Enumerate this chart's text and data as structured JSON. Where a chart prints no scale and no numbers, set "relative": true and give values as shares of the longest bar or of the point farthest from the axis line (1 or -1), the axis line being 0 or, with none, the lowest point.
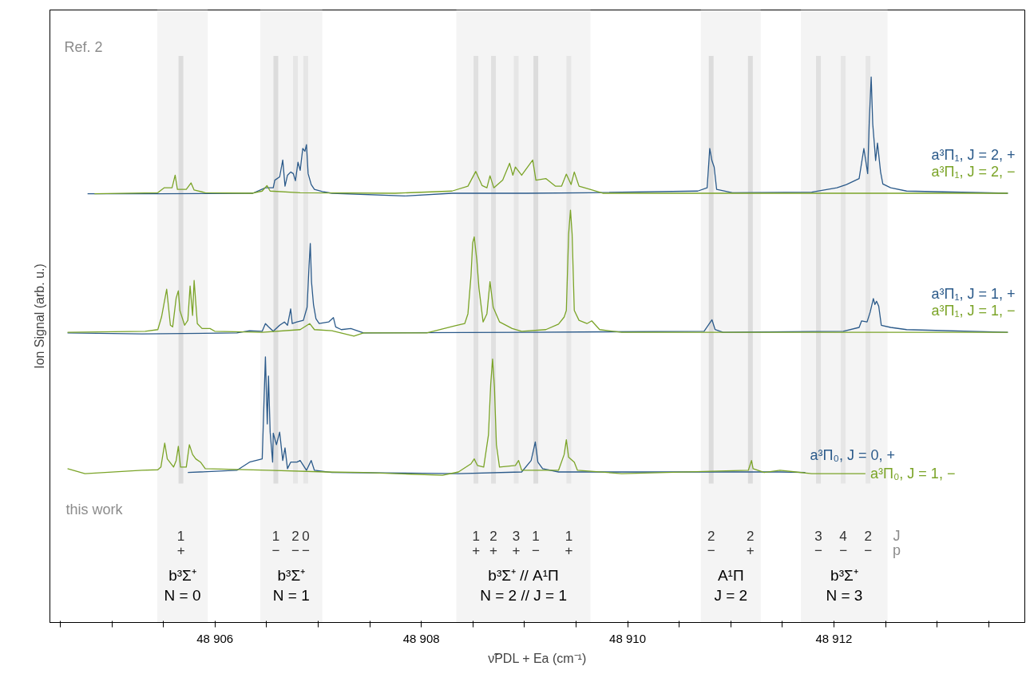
{
  "chart_data": {
    "type": "line",
    "relative": true,
    "grid": false,
    "legend": false,
    "line_style": "solid",
    "marker": "none",
    "xlabel": "ν̃PDL + Ea (cm⁻¹)",
    "ylabel": "Ion Signal (arb. u.)",
    "xlim": [
      48904.4,
      48913.85
    ],
    "xticks": [
      {
        "value": 48904.5,
        "label": null
      },
      {
        "value": 48905,
        "label": null
      },
      {
        "value": 48905.5,
        "label": null
      },
      {
        "value": 48906,
        "label": "48 906"
      },
      {
        "value": 48906.5,
        "label": null
      },
      {
        "value": 48907,
        "label": null
      },
      {
        "value": 48907.5,
        "label": null
      },
      {
        "value": 48908,
        "label": "48 908"
      },
      {
        "value": 48908.5,
        "label": null
      },
      {
        "value": 48909,
        "label": null
      },
      {
        "value": 48909.5,
        "label": null
      },
      {
        "value": 48910,
        "label": "48 910"
      },
      {
        "value": 48910.5,
        "label": null
      },
      {
        "value": 48911,
        "label": null
      },
      {
        "value": 48911.5,
        "label": null
      },
      {
        "value": 48912,
        "label": "48 912"
      },
      {
        "value": 48912.5,
        "label": null
      },
      {
        "value": 48913,
        "label": null
      },
      {
        "value": 48913.5,
        "label": null
      }
    ],
    "series": [
      {
        "name": "a³Π₁, J = 2, +",
        "color": "#2b5a8a",
        "x": [
          48904.765,
          48905.446,
          48906.366,
          48906.489,
          48906.565,
          48906.58,
          48906.627,
          48906.657,
          48906.679,
          48906.703,
          48906.734,
          48906.759,
          48906.78,
          48906.805,
          48906.826,
          48906.851,
          48906.872,
          48906.887,
          48906.903,
          48906.933,
          48906.964,
          48907.041,
          48907.133,
          48907.838,
          48908.298,
          48909.023,
          48909.636,
          48910.68,
          48910.771,
          48910.796,
          48910.817,
          48910.839,
          48910.863,
          48911.017,
          48911.784,
          48912.029,
          48912.121,
          48912.244,
          48912.29,
          48912.327,
          48912.342,
          48912.361,
          48912.376,
          48912.391,
          48912.404,
          48912.422,
          48912.452,
          48912.474,
          48912.55,
          48912.704,
          48913.686
        ],
        "values": [
          0.786,
          0.786,
          0.787,
          0.797,
          0.797,
          0.811,
          0.817,
          0.848,
          0.8,
          0.82,
          0.826,
          0.823,
          0.81,
          0.844,
          0.829,
          0.869,
          0.864,
          0.876,
          0.823,
          0.803,
          0.794,
          0.79,
          0.787,
          0.782,
          0.787,
          0.787,
          0.788,
          0.791,
          0.797,
          0.869,
          0.847,
          0.835,
          0.794,
          0.788,
          0.789,
          0.797,
          0.803,
          0.814,
          0.869,
          0.823,
          0.917,
          1.0,
          0.914,
          0.879,
          0.847,
          0.879,
          0.826,
          0.804,
          0.797,
          0.791,
          0.787
        ]
      },
      {
        "name": "a³Π₁, J = 2, −",
        "color": "#7ba428",
        "x": [
          48904.832,
          48905.446,
          48905.507,
          48905.584,
          48905.614,
          48905.636,
          48905.722,
          48905.768,
          48905.798,
          48905.906,
          48906.366,
          48906.458,
          48906.504,
          48906.535,
          48906.826,
          48907.746,
          48908.298,
          48908.452,
          48908.528,
          48908.59,
          48908.636,
          48908.666,
          48908.703,
          48908.789,
          48908.856,
          48908.887,
          48908.912,
          48908.973,
          48909.08,
          48909.111,
          48909.207,
          48909.299,
          48909.36,
          48909.406,
          48909.452,
          48909.483,
          48909.529,
          48909.636,
          48909.759,
          48910.863,
          48913.686
        ],
        "values": [
          0.786,
          0.788,
          0.797,
          0.797,
          0.82,
          0.794,
          0.794,
          0.806,
          0.793,
          0.788,
          0.787,
          0.791,
          0.801,
          0.791,
          0.788,
          0.787,
          0.791,
          0.8,
          0.827,
          0.801,
          0.797,
          0.819,
          0.797,
          0.811,
          0.842,
          0.82,
          0.835,
          0.82,
          0.848,
          0.811,
          0.814,
          0.8,
          0.8,
          0.822,
          0.803,
          0.826,
          0.8,
          0.794,
          0.787,
          0.787,
          0.787
        ]
      },
      {
        "name": "a³Π₁, J = 1, +",
        "color": "#2b5a8a",
        "x": [
          48904.571,
          48905.292,
          48906.212,
          48906.335,
          48906.458,
          48906.489,
          48906.519,
          48906.565,
          48906.627,
          48906.673,
          48906.703,
          48906.734,
          48906.749,
          48906.795,
          48906.857,
          48906.893,
          48906.912,
          48906.924,
          48906.936,
          48906.955,
          48906.979,
          48907.01,
          48907.102,
          48907.148,
          48907.17,
          48907.225,
          48907.317,
          48907.44,
          48909.023,
          48910.741,
          48910.818,
          48910.848,
          48910.925,
          48912.09,
          48912.244,
          48912.268,
          48912.321,
          48912.351,
          48912.382,
          48912.397,
          48912.413,
          48912.434,
          48912.459,
          48912.55,
          48912.704,
          48913.686
        ],
        "values": [
          0.531,
          0.529,
          0.531,
          0.535,
          0.534,
          0.548,
          0.542,
          0.534,
          0.545,
          0.551,
          0.545,
          0.575,
          0.548,
          0.551,
          0.554,
          0.578,
          0.654,
          0.695,
          0.624,
          0.583,
          0.557,
          0.548,
          0.551,
          0.559,
          0.542,
          0.537,
          0.539,
          0.531,
          0.532,
          0.534,
          0.555,
          0.537,
          0.532,
          0.534,
          0.541,
          0.553,
          0.551,
          0.569,
          0.594,
          0.583,
          0.589,
          0.58,
          0.545,
          0.541,
          0.537,
          0.532
        ]
      },
      {
        "name": "a³Π₁, J = 1, −",
        "color": "#7ba428",
        "x": [
          48904.571,
          48905.323,
          48905.446,
          48905.482,
          48905.532,
          48905.568,
          48905.59,
          48905.624,
          48905.645,
          48905.66,
          48905.706,
          48905.737,
          48905.759,
          48905.783,
          48905.798,
          48905.829,
          48905.875,
          48905.952,
          48905.998,
          48906.458,
          48906.826,
          48906.918,
          48906.964,
          48907.133,
          48907.347,
          48907.44,
          48908.053,
          48908.329,
          48908.421,
          48908.452,
          48908.482,
          48908.498,
          48908.513,
          48908.538,
          48908.559,
          48908.599,
          48908.636,
          48908.666,
          48908.697,
          48908.759,
          48908.881,
          48908.973,
          48909.207,
          48909.33,
          48909.385,
          48909.406,
          48909.428,
          48909.446,
          48909.462,
          48909.483,
          48909.529,
          48909.606,
          48909.652,
          48909.729,
          48909.943,
          48913.686
        ],
        "values": [
          0.532,
          0.534,
          0.537,
          0.56,
          0.611,
          0.545,
          0.542,
          0.595,
          0.608,
          0.572,
          0.545,
          0.554,
          0.617,
          0.563,
          0.627,
          0.548,
          0.539,
          0.539,
          0.534,
          0.532,
          0.537,
          0.548,
          0.537,
          0.535,
          0.525,
          0.531,
          0.531,
          0.544,
          0.548,
          0.566,
          0.636,
          0.696,
          0.707,
          0.665,
          0.613,
          0.551,
          0.566,
          0.625,
          0.578,
          0.551,
          0.539,
          0.534,
          0.537,
          0.547,
          0.56,
          0.572,
          0.712,
          0.756,
          0.712,
          0.572,
          0.554,
          0.548,
          0.553,
          0.537,
          0.532,
          0.532
        ]
      },
      {
        "name": "a³Π₀, J = 0, +",
        "color": "#2b5a8a",
        "x": [
          48905.737,
          48906.212,
          48906.335,
          48906.458,
          48906.489,
          48906.507,
          48906.519,
          48906.535,
          48906.559,
          48906.565,
          48906.596,
          48906.627,
          48906.657,
          48906.679,
          48906.703,
          48906.734,
          48906.795,
          48906.826,
          48906.887,
          48906.933,
          48906.964,
          48907.133,
          48908.36,
          48908.973,
          48909.065,
          48909.105,
          48909.13,
          48909.176,
          48909.33,
          48911.477,
          48911.722
        ],
        "values": [
          0.275,
          0.279,
          0.294,
          0.3,
          0.487,
          0.364,
          0.452,
          0.349,
          0.294,
          0.347,
          0.326,
          0.349,
          0.297,
          0.32,
          0.282,
          0.294,
          0.294,
          0.297,
          0.279,
          0.297,
          0.279,
          0.275,
          0.273,
          0.276,
          0.297,
          0.331,
          0.294,
          0.282,
          0.276,
          0.276,
          0.275
        ]
      },
      {
        "name": "a³Π₀, J = 1, −",
        "color": "#7ba428",
        "x": [
          48904.571,
          48904.74,
          48905.292,
          48905.446,
          48905.476,
          48905.513,
          48905.538,
          48905.599,
          48905.624,
          48905.645,
          48905.666,
          48905.722,
          48905.752,
          48905.783,
          48905.814,
          48905.86,
          48905.906,
          48906.519,
          48907.071,
          48907.44,
          48908.206,
          48908.36,
          48908.482,
          48908.513,
          48908.544,
          48908.605,
          48908.651,
          48908.673,
          48908.691,
          48908.709,
          48908.728,
          48908.758,
          48908.912,
          48908.943,
          48908.973,
          48909.33,
          48909.385,
          48909.406,
          48909.428,
          48909.483,
          48909.514,
          48909.943,
          48911.17,
          48911.201,
          48911.216,
          48911.324,
          48911.477,
          48911.63,
          48911.784,
          48912.305
        ],
        "values": [
          0.282,
          0.273,
          0.279,
          0.28,
          0.285,
          0.329,
          0.3,
          0.285,
          0.297,
          0.323,
          0.285,
          0.285,
          0.326,
          0.308,
          0.3,
          0.294,
          0.282,
          0.279,
          0.276,
          0.275,
          0.27,
          0.276,
          0.291,
          0.3,
          0.288,
          0.285,
          0.344,
          0.437,
          0.483,
          0.431,
          0.326,
          0.285,
          0.288,
          0.297,
          0.279,
          0.279,
          0.308,
          0.335,
          0.303,
          0.294,
          0.279,
          0.273,
          0.279,
          0.297,
          0.282,
          0.275,
          0.279,
          0.276,
          0.273,
          0.273
        ]
      }
    ],
    "bands": [
      {
        "axis": "x",
        "from": 48905.44,
        "to": 48905.93,
        "label": "b³Σ⁺\nN = 0",
        "color": "#f4f4f4"
      },
      {
        "axis": "x",
        "from": 48906.44,
        "to": 48907.04,
        "label": "b³Σ⁺\nN = 1",
        "color": "#f4f4f4"
      },
      {
        "axis": "x",
        "from": 48908.34,
        "to": 48909.64,
        "label": "b³Σ⁺ // A¹Π\nN = 2 // J = 1",
        "color": "#f4f4f4"
      },
      {
        "axis": "x",
        "from": 48910.71,
        "to": 48911.29,
        "label": "A¹Π\nJ = 2",
        "color": "#f4f4f4"
      },
      {
        "axis": "x",
        "from": 48911.68,
        "to": 48912.52,
        "label": "b³Σ⁺\nN = 3",
        "color": "#f4f4f4"
      }
    ],
    "ref_lines": [
      {
        "axis": "x",
        "value": 48905.67,
        "color": "#dcdcdc"
      },
      {
        "axis": "x",
        "value": 48906.59,
        "color": "#dcdcdc"
      },
      {
        "axis": "x",
        "value": 48906.78,
        "color": "#e6e6e6"
      },
      {
        "axis": "x",
        "value": 48906.88,
        "color": "#e6e6e6"
      },
      {
        "axis": "x",
        "value": 48908.53,
        "color": "#e0e0e0"
      },
      {
        "axis": "x",
        "value": 48908.7,
        "color": "#e0e0e0"
      },
      {
        "axis": "x",
        "value": 48908.92,
        "color": "#e6e6e6"
      },
      {
        "axis": "x",
        "value": 48909.11,
        "color": "#dcdcdc"
      },
      {
        "axis": "x",
        "value": 48909.43,
        "color": "#e6e6e6"
      },
      {
        "axis": "x",
        "value": 48910.81,
        "color": "#dcdcdc"
      },
      {
        "axis": "x",
        "value": 48911.19,
        "color": "#dcdcdc"
      },
      {
        "axis": "x",
        "value": 48911.85,
        "color": "#e0e0e0"
      },
      {
        "axis": "x",
        "value": 48912.09,
        "color": "#e6e6e6"
      },
      {
        "axis": "x",
        "value": 48912.33,
        "color": "#e6e6e6"
      }
    ],
    "annotations": [
      "Ref. 2",
      "this work",
      "J",
      "p",
      "1\n+",
      "1\n−",
      "2\n−",
      "0\n−",
      "1\n+",
      "2\n+",
      "3\n+",
      "1\n−",
      "1\n+",
      "2\n−",
      "2\n+",
      "3\n−",
      "4\n−",
      "2\n−"
    ]
  }
}
